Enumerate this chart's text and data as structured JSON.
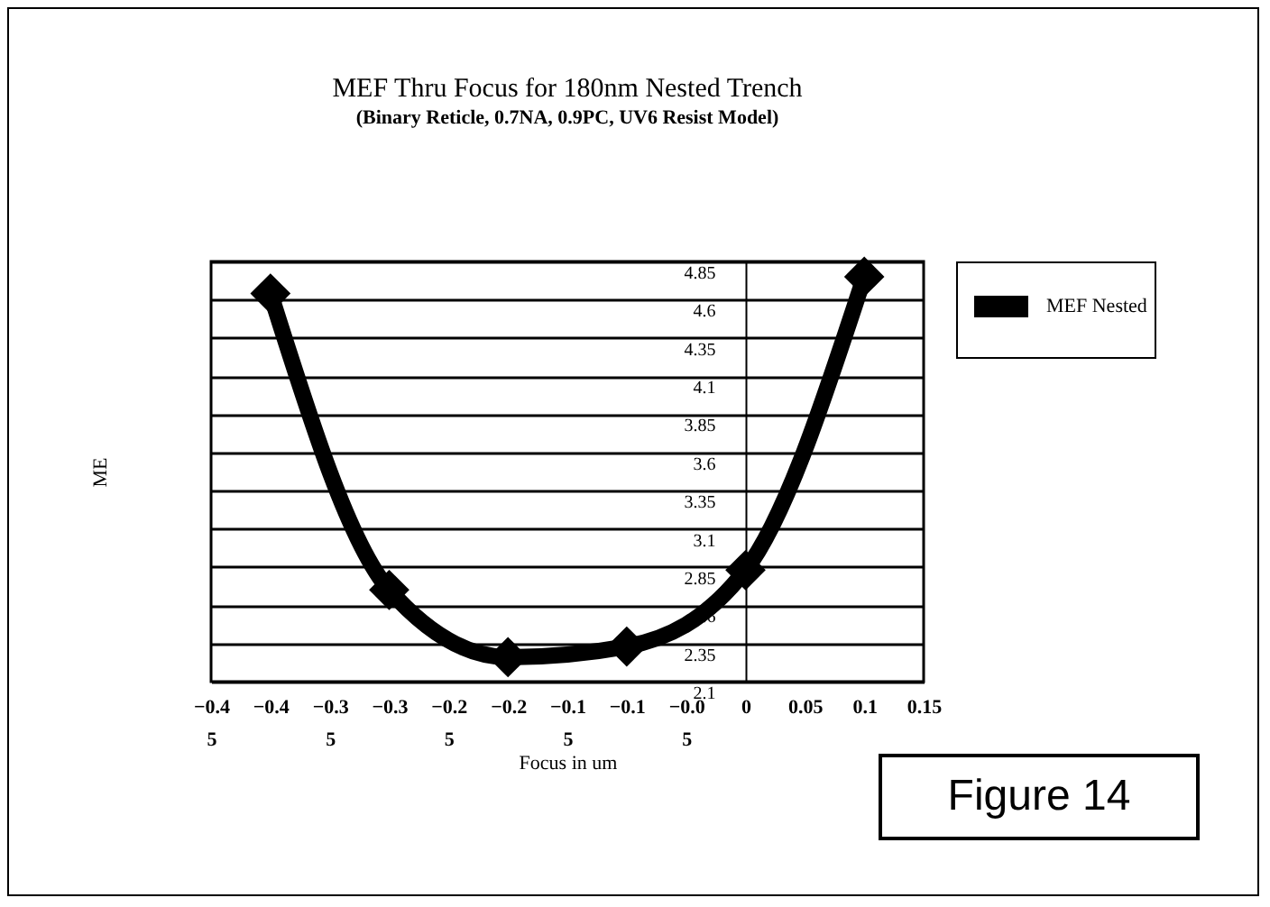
{
  "chart_data": {
    "type": "line",
    "title": "MEF Thru Focus for 180nm Nested Trench",
    "subtitle": "(Binary Reticle, 0.7NA, 0.9PC, UV6 Resist Model)",
    "xlabel": "Focus in um",
    "ylabel": "ME",
    "x": [
      -0.4,
      -0.3,
      -0.2,
      -0.1,
      0,
      0.1
    ],
    "series": [
      {
        "name": "MEF Nested",
        "color": "#000000",
        "values": [
          4.64,
          2.7,
          2.26,
          2.33,
          2.83,
          4.75
        ]
      }
    ],
    "xlim": [
      -0.45,
      0.15
    ],
    "xticks": [
      -0.45,
      -0.4,
      -0.35,
      -0.3,
      -0.25,
      -0.2,
      -0.15,
      -0.1,
      -0.05,
      0,
      0.05,
      0.1,
      0.15
    ],
    "ylim": [
      2.1,
      4.85
    ],
    "yticks": [
      2.1,
      2.35,
      2.6,
      2.85,
      3.1,
      3.35,
      3.6,
      3.85,
      4.1,
      4.35,
      4.6,
      4.85
    ],
    "grid": "y",
    "legend": "right",
    "marker": "diamond",
    "line_style": "solid",
    "annotations": [
      "Figure 14"
    ]
  }
}
